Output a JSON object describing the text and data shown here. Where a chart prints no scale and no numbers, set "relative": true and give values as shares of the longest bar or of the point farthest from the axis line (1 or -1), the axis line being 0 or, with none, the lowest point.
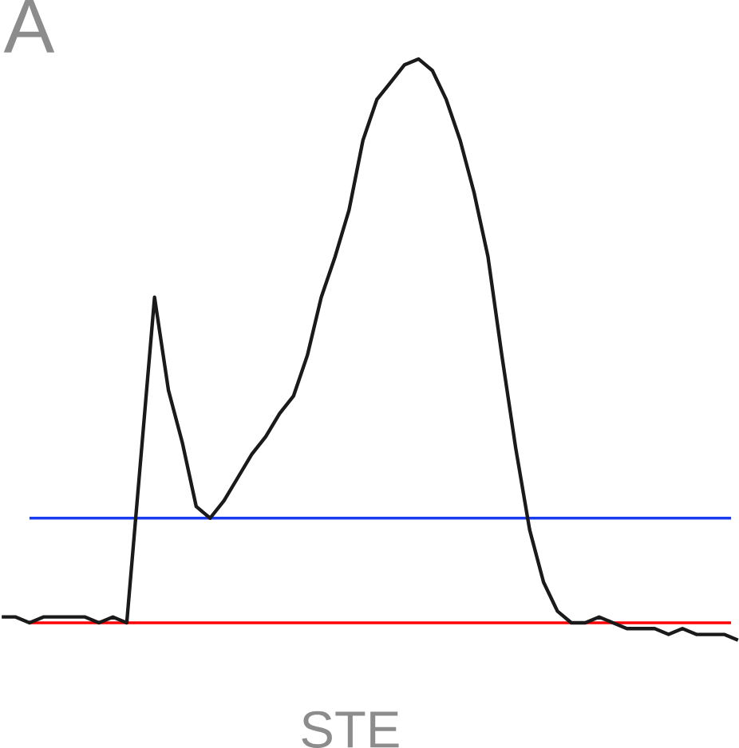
{
  "chart_data": {
    "type": "line",
    "relative": true,
    "categories": [
      null,
      null,
      null,
      null,
      null,
      null,
      null,
      null,
      null,
      null,
      null,
      null,
      null,
      null,
      null,
      null,
      null,
      null,
      null,
      null,
      null,
      null,
      null,
      null,
      null,
      null,
      null,
      null,
      null,
      null,
      null,
      null,
      null,
      null,
      null,
      null,
      null,
      null,
      null,
      null,
      null,
      null,
      null,
      null,
      null,
      null,
      null,
      null,
      null,
      null,
      null,
      null,
      null,
      null
    ],
    "series": [
      {
        "color": "#1a1a1a",
        "values": [
          0.04,
          0.04,
          0.03,
          0.04,
          0.04,
          0.04,
          0.04,
          0.03,
          0.04,
          0.03,
          0.31,
          0.59,
          0.43,
          0.34,
          0.23,
          0.21,
          0.24,
          0.28,
          0.32,
          0.35,
          0.39,
          0.42,
          0.49,
          0.59,
          0.66,
          0.74,
          0.86,
          0.93,
          0.96,
          0.99,
          1.0,
          0.98,
          0.93,
          0.86,
          0.77,
          0.66,
          0.49,
          0.33,
          0.19,
          0.1,
          0.05,
          0.03,
          0.03,
          0.04,
          0.03,
          0.02,
          0.02,
          0.02,
          0.01,
          0.02,
          0.01,
          0.01,
          0.01,
          0
        ]
      }
    ],
    "ref_lines": [
      {
        "axis": "y",
        "value": 0.21,
        "color": "#1a3cf0"
      },
      {
        "axis": "y",
        "value": 0.03,
        "color": "#ff0000"
      }
    ],
    "annotations": [
      "A",
      "STE"
    ],
    "marker": "none",
    "line_style": "solid"
  }
}
